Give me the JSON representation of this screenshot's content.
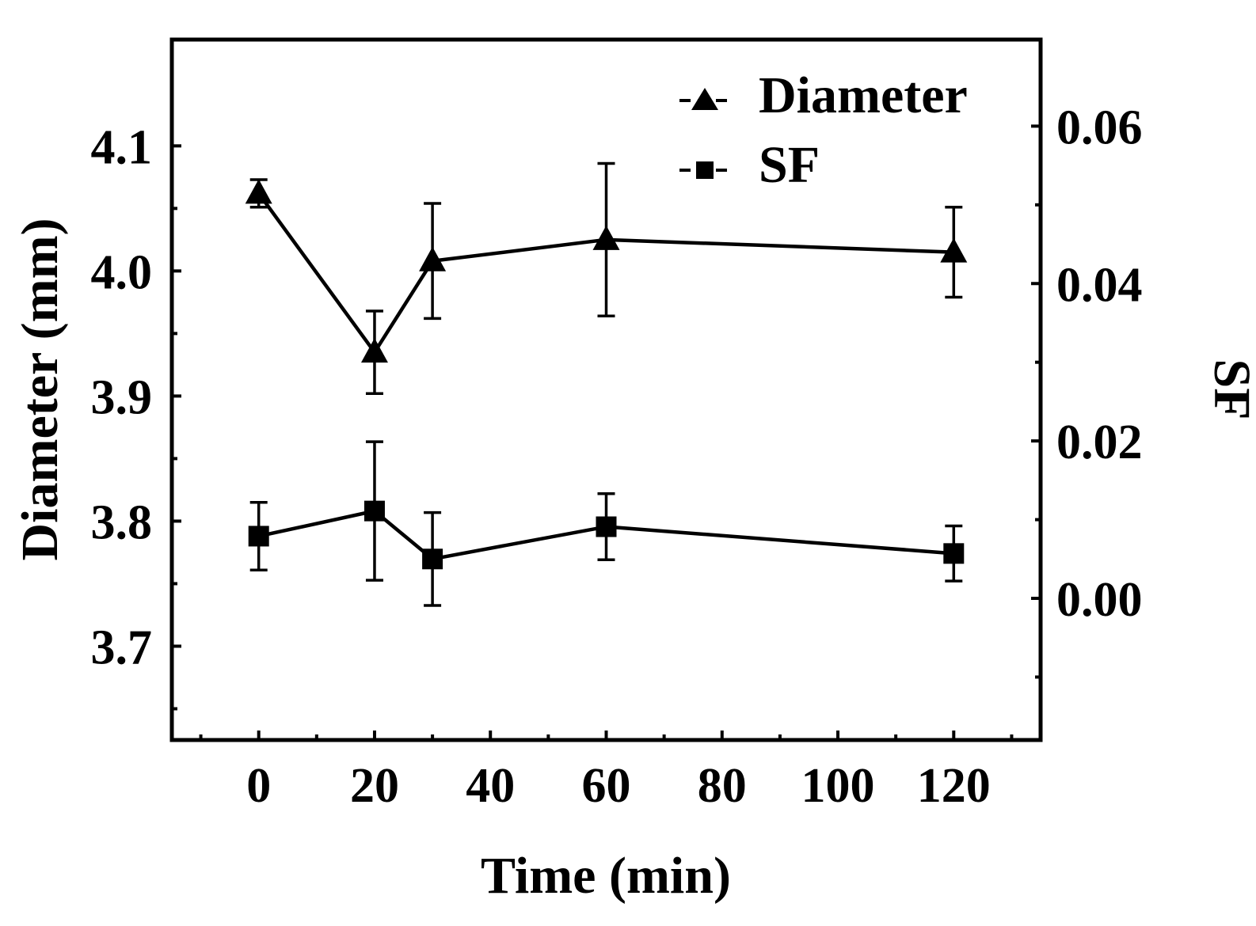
{
  "chart_data": {
    "type": "line",
    "xlabel": "Time (min)",
    "ylabel": "Diameter (mm)",
    "y2label": "SF",
    "xlim": [
      -15,
      135
    ],
    "ylim": [
      3.625,
      4.185
    ],
    "y2lim": [
      -0.018,
      0.071
    ],
    "x_ticks": [
      0,
      20,
      40,
      60,
      80,
      100,
      120
    ],
    "x_tick_labels": [
      "0",
      "20",
      "40",
      "60",
      "80",
      "100",
      "120"
    ],
    "y_ticks": [
      3.7,
      3.8,
      3.9,
      4.0,
      4.1
    ],
    "y_tick_labels": [
      "3.7",
      "3.8",
      "3.9",
      "4.0",
      "4.1"
    ],
    "y2_ticks": [
      0.0,
      0.02,
      0.04,
      0.06
    ],
    "y2_tick_labels": [
      "0.00",
      "0.02",
      "0.04",
      "0.06"
    ],
    "legend_position": "top-right",
    "series": [
      {
        "name": "Diameter",
        "axis": "left",
        "marker": "triangle",
        "x": [
          0,
          20,
          30,
          60,
          120
        ],
        "y": [
          4.062,
          3.935,
          4.008,
          4.025,
          4.015
        ],
        "err": [
          0.011,
          0.033,
          0.046,
          0.061,
          0.036
        ]
      },
      {
        "name": "SF",
        "axis": "right",
        "marker": "square",
        "x": [
          0,
          20,
          30,
          60,
          120
        ],
        "y": [
          0.0079,
          0.0111,
          0.005,
          0.0091,
          0.0057
        ],
        "err": [
          0.0043,
          0.0088,
          0.0059,
          0.0042,
          0.0035
        ]
      }
    ]
  }
}
